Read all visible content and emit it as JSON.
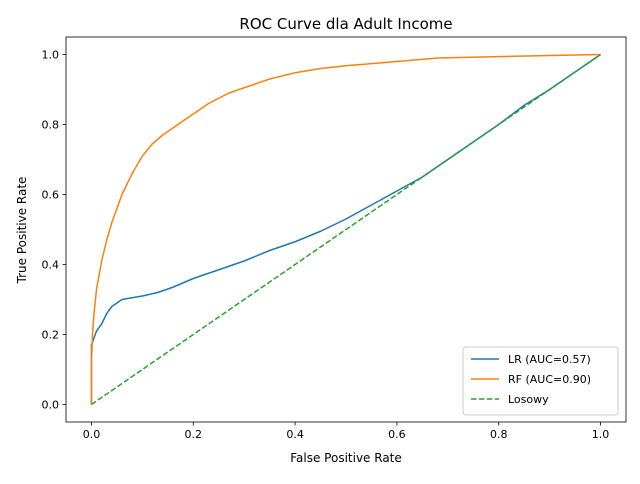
{
  "chart_data": {
    "type": "line",
    "title": "ROC Curve dla Adult Income",
    "xlabel": "False Positive Rate",
    "ylabel": "True Positive Rate",
    "xlim": [
      -0.05,
      1.05
    ],
    "ylim": [
      -0.05,
      1.05
    ],
    "xticks": [
      "0.0",
      "0.2",
      "0.4",
      "0.6",
      "0.8",
      "1.0"
    ],
    "yticks": [
      "0.0",
      "0.2",
      "0.4",
      "0.6",
      "0.8",
      "1.0"
    ],
    "grid": false,
    "legend_position": "lower-right",
    "series": [
      {
        "name": "LR (AUC=0.57)",
        "color": "#1f77b4",
        "style": "solid",
        "x": [
          0,
          0,
          0.005,
          0.01,
          0.02,
          0.03,
          0.04,
          0.05,
          0.06,
          0.08,
          0.1,
          0.13,
          0.16,
          0.2,
          0.24,
          0.27,
          0.3,
          0.35,
          0.4,
          0.45,
          0.5,
          0.55,
          0.6,
          0.65,
          0.7,
          0.75,
          0.8,
          0.85,
          0.9,
          0.95,
          1.0
        ],
        "y": [
          0,
          0.17,
          0.19,
          0.21,
          0.23,
          0.26,
          0.28,
          0.29,
          0.3,
          0.305,
          0.31,
          0.32,
          0.335,
          0.36,
          0.38,
          0.395,
          0.41,
          0.44,
          0.465,
          0.495,
          0.53,
          0.57,
          0.61,
          0.65,
          0.7,
          0.75,
          0.8,
          0.855,
          0.9,
          0.95,
          1.0
        ]
      },
      {
        "name": "RF (AUC=0.90)",
        "color": "#ff7f0e",
        "style": "solid",
        "x": [
          0,
          0,
          0.002,
          0.005,
          0.01,
          0.02,
          0.03,
          0.04,
          0.05,
          0.06,
          0.08,
          0.1,
          0.12,
          0.14,
          0.17,
          0.2,
          0.23,
          0.27,
          0.3,
          0.35,
          0.4,
          0.45,
          0.5,
          0.6,
          0.68,
          0.8,
          0.9,
          1.0
        ],
        "y": [
          0,
          0.12,
          0.2,
          0.26,
          0.33,
          0.41,
          0.47,
          0.52,
          0.56,
          0.6,
          0.66,
          0.71,
          0.745,
          0.77,
          0.8,
          0.83,
          0.86,
          0.89,
          0.905,
          0.93,
          0.948,
          0.96,
          0.968,
          0.98,
          0.99,
          0.994,
          0.997,
          1.0
        ]
      },
      {
        "name": "Losowy",
        "color": "#2ca02c",
        "style": "dashed",
        "x": [
          0,
          1
        ],
        "y": [
          0,
          1
        ]
      }
    ]
  }
}
